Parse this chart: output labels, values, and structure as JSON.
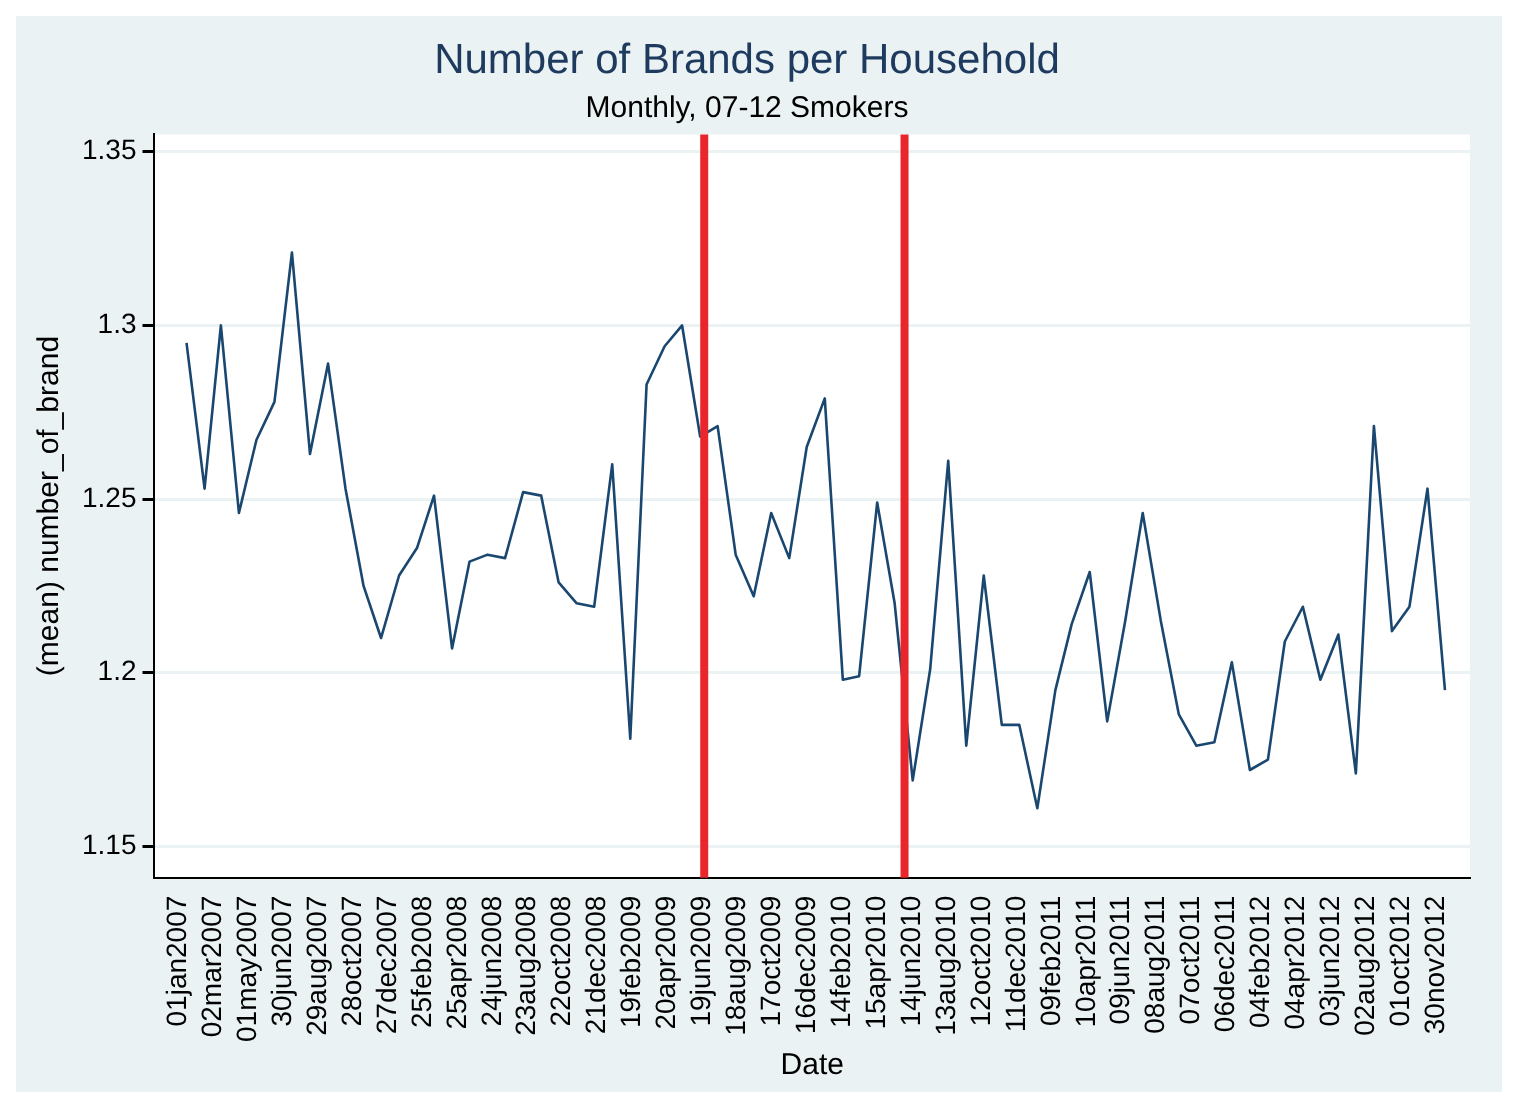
{
  "chart_data": {
    "type": "line",
    "title": "Number of Brands per Household",
    "subtitle": "Monthly, 07-12 Smokers",
    "xlabel": "Date",
    "ylabel": "(mean) number_of_brand",
    "x": [
      "2007-01-15",
      "2007-02-15",
      "2007-03-15",
      "2007-04-15",
      "2007-05-15",
      "2007-06-15",
      "2007-07-15",
      "2007-08-15",
      "2007-09-15",
      "2007-10-15",
      "2007-11-15",
      "2007-12-15",
      "2008-01-15",
      "2008-02-15",
      "2008-03-15",
      "2008-04-15",
      "2008-05-15",
      "2008-06-15",
      "2008-07-15",
      "2008-08-15",
      "2008-09-15",
      "2008-10-15",
      "2008-11-15",
      "2008-12-15",
      "2009-01-15",
      "2009-02-15",
      "2009-03-15",
      "2009-04-15",
      "2009-05-15",
      "2009-06-15",
      "2009-07-15",
      "2009-08-15",
      "2009-09-15",
      "2009-10-15",
      "2009-11-15",
      "2009-12-15",
      "2010-01-15",
      "2010-02-15",
      "2010-03-15",
      "2010-04-15",
      "2010-05-15",
      "2010-06-15",
      "2010-07-15",
      "2010-08-15",
      "2010-09-15",
      "2010-10-15",
      "2010-11-15",
      "2010-12-15",
      "2011-01-15",
      "2011-02-15",
      "2011-03-15",
      "2011-04-15",
      "2011-05-15",
      "2011-06-15",
      "2011-07-15",
      "2011-08-15",
      "2011-09-15",
      "2011-10-15",
      "2011-11-15",
      "2011-12-15",
      "2012-01-15",
      "2012-02-15",
      "2012-03-15",
      "2012-04-15",
      "2012-05-15",
      "2012-06-15",
      "2012-07-15",
      "2012-08-15",
      "2012-09-15",
      "2012-10-15",
      "2012-11-15",
      "2012-12-15"
    ],
    "series": [
      {
        "color": "#1a476f",
        "values": [
          1.295,
          1.253,
          1.3,
          1.246,
          1.267,
          1.278,
          1.321,
          1.263,
          1.289,
          1.253,
          1.225,
          1.21,
          1.228,
          1.236,
          1.251,
          1.207,
          1.232,
          1.234,
          1.233,
          1.252,
          1.251,
          1.226,
          1.22,
          1.219,
          1.26,
          1.181,
          1.283,
          1.294,
          1.3,
          1.268,
          1.271,
          1.234,
          1.222,
          1.246,
          1.233,
          1.265,
          1.279,
          1.198,
          1.199,
          1.249,
          1.22,
          1.169,
          1.201,
          1.261,
          1.179,
          1.228,
          1.185,
          1.185,
          1.161,
          1.195,
          1.214,
          1.229,
          1.186,
          1.215,
          1.246,
          1.215,
          1.188,
          1.179,
          1.18,
          1.203,
          1.172,
          1.175,
          1.209,
          1.219,
          1.198,
          1.211,
          1.171,
          1.271,
          1.212,
          1.219,
          1.253,
          1.195
        ]
      }
    ],
    "xlim": [
      "2006-11-21",
      "2013-01-27"
    ],
    "ylim": [
      1.141,
      1.355
    ],
    "xticks": [
      {
        "value": "2007-01-01",
        "label": "01jan2007"
      },
      {
        "value": "2007-03-02",
        "label": "02mar2007"
      },
      {
        "value": "2007-05-01",
        "label": "01may2007"
      },
      {
        "value": "2007-06-30",
        "label": "30jun2007"
      },
      {
        "value": "2007-08-29",
        "label": "29aug2007"
      },
      {
        "value": "2007-10-28",
        "label": "28oct2007"
      },
      {
        "value": "2007-12-27",
        "label": "27dec2007"
      },
      {
        "value": "2008-02-25",
        "label": "25feb2008"
      },
      {
        "value": "2008-04-25",
        "label": "25apr2008"
      },
      {
        "value": "2008-06-24",
        "label": "24jun2008"
      },
      {
        "value": "2008-08-23",
        "label": "23aug2008"
      },
      {
        "value": "2008-10-22",
        "label": "22oct2008"
      },
      {
        "value": "2008-12-21",
        "label": "21dec2008"
      },
      {
        "value": "2009-02-19",
        "label": "19feb2009"
      },
      {
        "value": "2009-04-20",
        "label": "20apr2009"
      },
      {
        "value": "2009-06-19",
        "label": "19jun2009"
      },
      {
        "value": "2009-08-18",
        "label": "18aug2009"
      },
      {
        "value": "2009-10-17",
        "label": "17oct2009"
      },
      {
        "value": "2009-12-16",
        "label": "16dec2009"
      },
      {
        "value": "2010-02-14",
        "label": "14feb2010"
      },
      {
        "value": "2010-04-15",
        "label": "15apr2010"
      },
      {
        "value": "2010-06-14",
        "label": "14jun2010"
      },
      {
        "value": "2010-08-13",
        "label": "13aug2010"
      },
      {
        "value": "2010-10-12",
        "label": "12oct2010"
      },
      {
        "value": "2010-12-11",
        "label": "11dec2010"
      },
      {
        "value": "2011-02-09",
        "label": "09feb2011"
      },
      {
        "value": "2011-04-10",
        "label": "10apr2011"
      },
      {
        "value": "2011-06-09",
        "label": "09jun2011"
      },
      {
        "value": "2011-08-08",
        "label": "08aug2011"
      },
      {
        "value": "2011-10-07",
        "label": "07oct2011"
      },
      {
        "value": "2011-12-06",
        "label": "06dec2011"
      },
      {
        "value": "2012-02-04",
        "label": "04feb2012"
      },
      {
        "value": "2012-04-04",
        "label": "04apr2012"
      },
      {
        "value": "2012-06-03",
        "label": "03jun2012"
      },
      {
        "value": "2012-08-02",
        "label": "02aug2012"
      },
      {
        "value": "2012-10-01",
        "label": "01oct2012"
      },
      {
        "value": "2012-11-30",
        "label": "30nov2012"
      }
    ],
    "yticks": [
      1.15,
      1.2,
      1.25,
      1.3,
      1.35
    ],
    "grid": "y",
    "legend": false,
    "marker": "none",
    "ref_lines": [
      {
        "axis": "x",
        "value": "2009-06-22",
        "color": "#e8262b"
      },
      {
        "axis": "x",
        "value": "2010-06-01",
        "color": "#e8262b"
      }
    ]
  }
}
